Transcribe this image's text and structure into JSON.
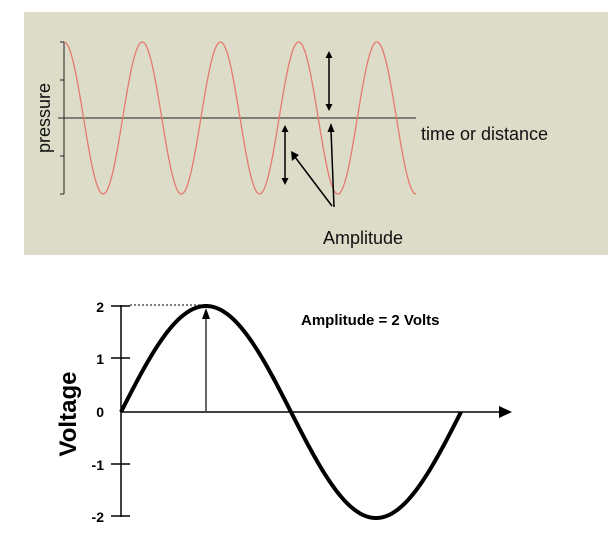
{
  "chart_data": [
    {
      "type": "line",
      "ylabel": "pressure",
      "xlabel": "time or distance",
      "annotations": [
        "Amplitude"
      ],
      "series": [
        {
          "cycles": 4.5,
          "amplitude": 1,
          "color": "#e77a6f"
        }
      ],
      "ylim": [
        -1,
        1
      ],
      "grid": false,
      "background": "#dcdcc8"
    },
    {
      "type": "line",
      "ylabel": "Voltage",
      "xlabel": "",
      "annotations": [
        "Amplitude = 2 Volts"
      ],
      "y_ticks": [
        "2",
        "1",
        "0",
        "-1",
        "-2"
      ],
      "series": [
        {
          "cycles": 1,
          "amplitude": 2,
          "color": "#000000"
        }
      ],
      "ylim": [
        -2,
        2
      ],
      "grid": false,
      "background": "#ffffff"
    }
  ]
}
